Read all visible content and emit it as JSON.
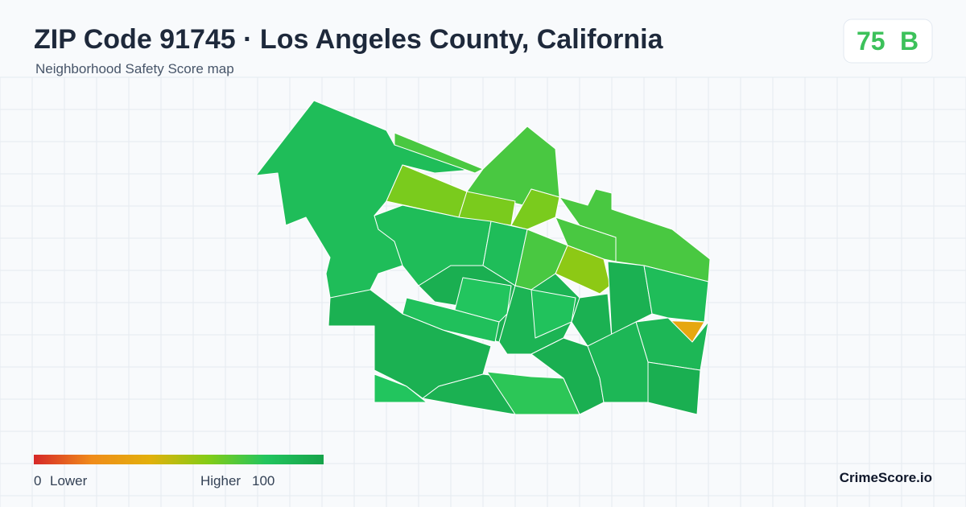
{
  "header": {
    "title": "ZIP Code 91745 · Los Angeles County, California",
    "subtitle": "Neighborhood Safety Score map"
  },
  "score": {
    "value": 75,
    "grade": "B"
  },
  "map": {
    "region_scores": [
      85,
      72,
      62,
      72,
      62,
      62,
      72,
      72,
      58,
      72,
      85,
      85,
      93,
      80,
      83,
      92,
      80,
      92,
      78,
      90,
      82,
      92,
      93,
      92,
      85,
      35,
      88,
      93,
      88
    ]
  },
  "legend": {
    "min": 0,
    "min_label": "Lower",
    "max_label": "Higher",
    "max": 100,
    "colors": [
      "#d62828",
      "#f08c1a",
      "#e2b00c",
      "#84cc16",
      "#22c55e",
      "#16a34a"
    ]
  },
  "brand": "CrimeScore.io"
}
